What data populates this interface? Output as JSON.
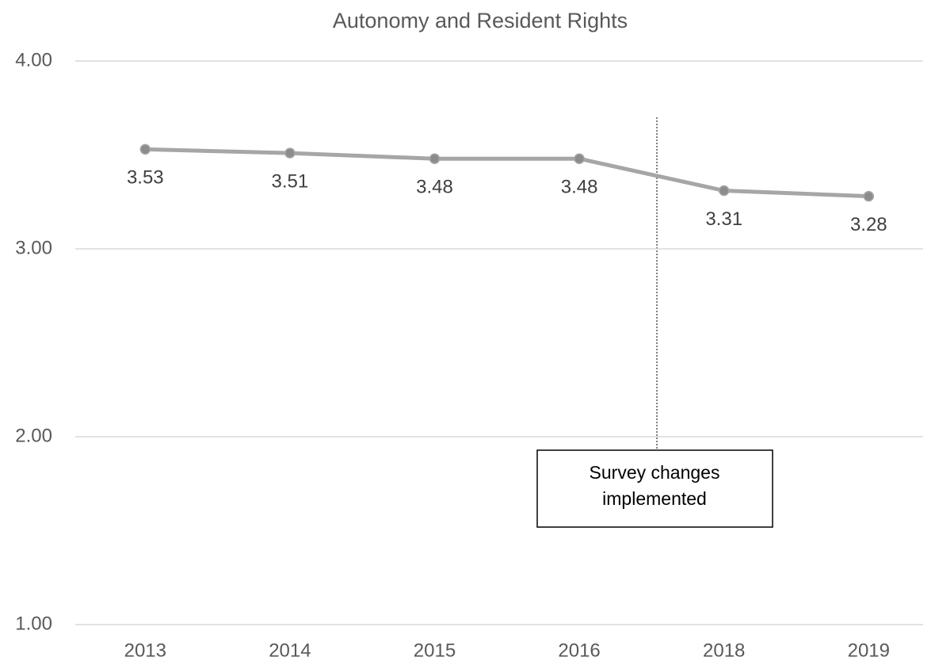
{
  "chart_data": {
    "type": "line",
    "title": "Autonomy and Resident Rights",
    "categories": [
      "2013",
      "2014",
      "2015",
      "2016",
      "2018",
      "2019"
    ],
    "series": [
      {
        "name": "Autonomy and Resident Rights",
        "color": "#a6a6a6",
        "marker_color": "#8c8c8c",
        "values": [
          3.53,
          3.51,
          3.48,
          3.48,
          3.31,
          3.28
        ]
      }
    ],
    "ylim": [
      1,
      4
    ],
    "yticks": [
      {
        "value": 1,
        "label": "1.00"
      },
      {
        "value": 2,
        "label": "2.00"
      },
      {
        "value": 3,
        "label": "3.00"
      },
      {
        "value": 4,
        "label": "4.00"
      }
    ],
    "grid": true,
    "annotation": {
      "lines": [
        "Survey changes",
        "implemented"
      ]
    }
  }
}
